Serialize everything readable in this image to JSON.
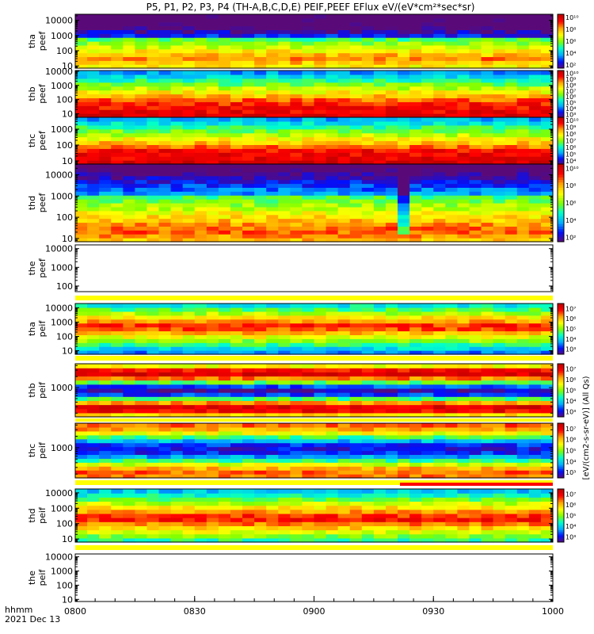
{
  "title": "P5, P1, P2, P3, P4 (TH-A,B,C,D,E) PEIF,PEEF EFlux eV/(eV*cm²*sec*sr)",
  "time_axis": {
    "ticks": [
      "0800",
      "0830",
      "0900",
      "0930",
      "1000"
    ],
    "unit_label": "hhmm",
    "date_label": "2021 Dec 13"
  },
  "colorbar_label": "[eV/(cm2-s-sr-eV)] (All Qs)",
  "chart_data": [
    {
      "type": "heatmap",
      "probe": "tha",
      "species": "peef",
      "label": "tha\npeef",
      "x_range": [
        "0800",
        "1000"
      ],
      "y_log": true,
      "yticks": [
        "10",
        "100",
        "1000",
        "10000"
      ],
      "has_data": true,
      "colorbar": {
        "ticks": [
          "10²",
          "10⁴",
          "10⁶",
          "10⁸",
          "10¹⁰"
        ],
        "exp": [
          2,
          4,
          6,
          8,
          10
        ]
      }
    },
    {
      "type": "heatmap",
      "probe": "thb",
      "species": "peef",
      "label": "thb\npeef",
      "x_range": [
        "0800",
        "1000"
      ],
      "y_log": true,
      "yticks": [
        "10",
        "100",
        "1000",
        "10000"
      ],
      "has_data": true,
      "colorbar": {
        "ticks": [
          "10³",
          "10⁴",
          "10⁵",
          "10⁶",
          "10⁷",
          "10⁸",
          "10⁹",
          "10¹⁰"
        ],
        "exp": [
          3,
          4,
          5,
          6,
          7,
          8,
          9,
          10
        ]
      }
    },
    {
      "type": "heatmap",
      "probe": "thc",
      "species": "peef",
      "label": "thc\npeef",
      "x_range": [
        "0800",
        "1000"
      ],
      "y_log": true,
      "yticks": [
        "10",
        "100",
        "1000"
      ],
      "has_data": true,
      "colorbar": {
        "ticks": [
          "10⁴",
          "10⁵",
          "10⁶",
          "10⁷",
          "10⁸",
          "10⁹",
          "10¹⁰"
        ],
        "exp": [
          4,
          5,
          6,
          7,
          8,
          9,
          10
        ]
      }
    },
    {
      "type": "heatmap",
      "probe": "thd",
      "species": "peef",
      "label": "thd\npeef",
      "x_range": [
        "0800",
        "1000"
      ],
      "y_log": true,
      "yticks": [
        "10",
        "100",
        "1000",
        "10000"
      ],
      "has_data": true,
      "colorbar": {
        "ticks": [
          "10²",
          "10⁴",
          "10⁶",
          "10⁸",
          "10¹⁰"
        ],
        "exp": [
          2,
          4,
          6,
          8,
          10
        ]
      }
    },
    {
      "type": "heatmap",
      "probe": "the",
      "species": "peef",
      "label": "the\npeef",
      "x_range": [
        "0800",
        "1000"
      ],
      "y_log": true,
      "yticks": [
        "100",
        "1000",
        "10000"
      ],
      "has_data": false
    },
    {
      "type": "heatmap",
      "probe": "tha",
      "species": "peif",
      "label": "tha\npeif",
      "x_range": [
        "0800",
        "1000"
      ],
      "y_log": true,
      "yticks": [
        "10",
        "100",
        "1000",
        "10000"
      ],
      "has_data": true,
      "colorbar": {
        "ticks": [
          "10³",
          "10⁴",
          "10⁵",
          "10⁶",
          "10⁷"
        ],
        "exp": [
          3,
          4,
          5,
          6,
          7
        ]
      }
    },
    {
      "type": "heatmap",
      "probe": "thb",
      "species": "peif",
      "label": "thb\npeif",
      "x_range": [
        "0800",
        "1000"
      ],
      "y_log": true,
      "yticks": [
        "1000"
      ],
      "has_data": true,
      "colorbar": {
        "ticks": [
          "10³",
          "10⁴",
          "10⁵",
          "10⁶",
          "10⁷"
        ],
        "exp": [
          3,
          4,
          5,
          6,
          7
        ]
      }
    },
    {
      "type": "heatmap",
      "probe": "thc",
      "species": "peif",
      "label": "thc\npeif",
      "x_range": [
        "0800",
        "1000"
      ],
      "y_log": true,
      "yticks": [
        "1000"
      ],
      "has_data": true,
      "colorbar": {
        "ticks": [
          "10³",
          "10⁴",
          "10⁵",
          "10⁶",
          "10⁷"
        ],
        "exp": [
          3,
          4,
          5,
          6,
          7
        ]
      }
    },
    {
      "type": "heatmap",
      "probe": "thd",
      "species": "peif",
      "label": "thd\npeif",
      "x_range": [
        "0800",
        "1000"
      ],
      "y_log": true,
      "yticks": [
        "10",
        "100",
        "1000",
        "10000"
      ],
      "has_data": true,
      "colorbar": {
        "ticks": [
          "10³",
          "10⁴",
          "10⁵",
          "10⁶",
          "10⁷"
        ],
        "exp": [
          3,
          4,
          5,
          6,
          7
        ]
      }
    },
    {
      "type": "heatmap",
      "probe": "the",
      "species": "peif",
      "label": "the\npeif",
      "x_range": [
        "0800",
        "1000"
      ],
      "y_log": true,
      "yticks": [
        "10",
        "100",
        "1000",
        "10000"
      ],
      "has_data": false
    }
  ],
  "colors": {
    "colormap": [
      "#5a0a78",
      "#0010ff",
      "#00b0ff",
      "#00ffcc",
      "#80ff00",
      "#ffff00",
      "#ffa000",
      "#ff0000",
      "#c00000"
    ],
    "status_yellow": "#ffff00",
    "status_red": "#ff0000"
  }
}
